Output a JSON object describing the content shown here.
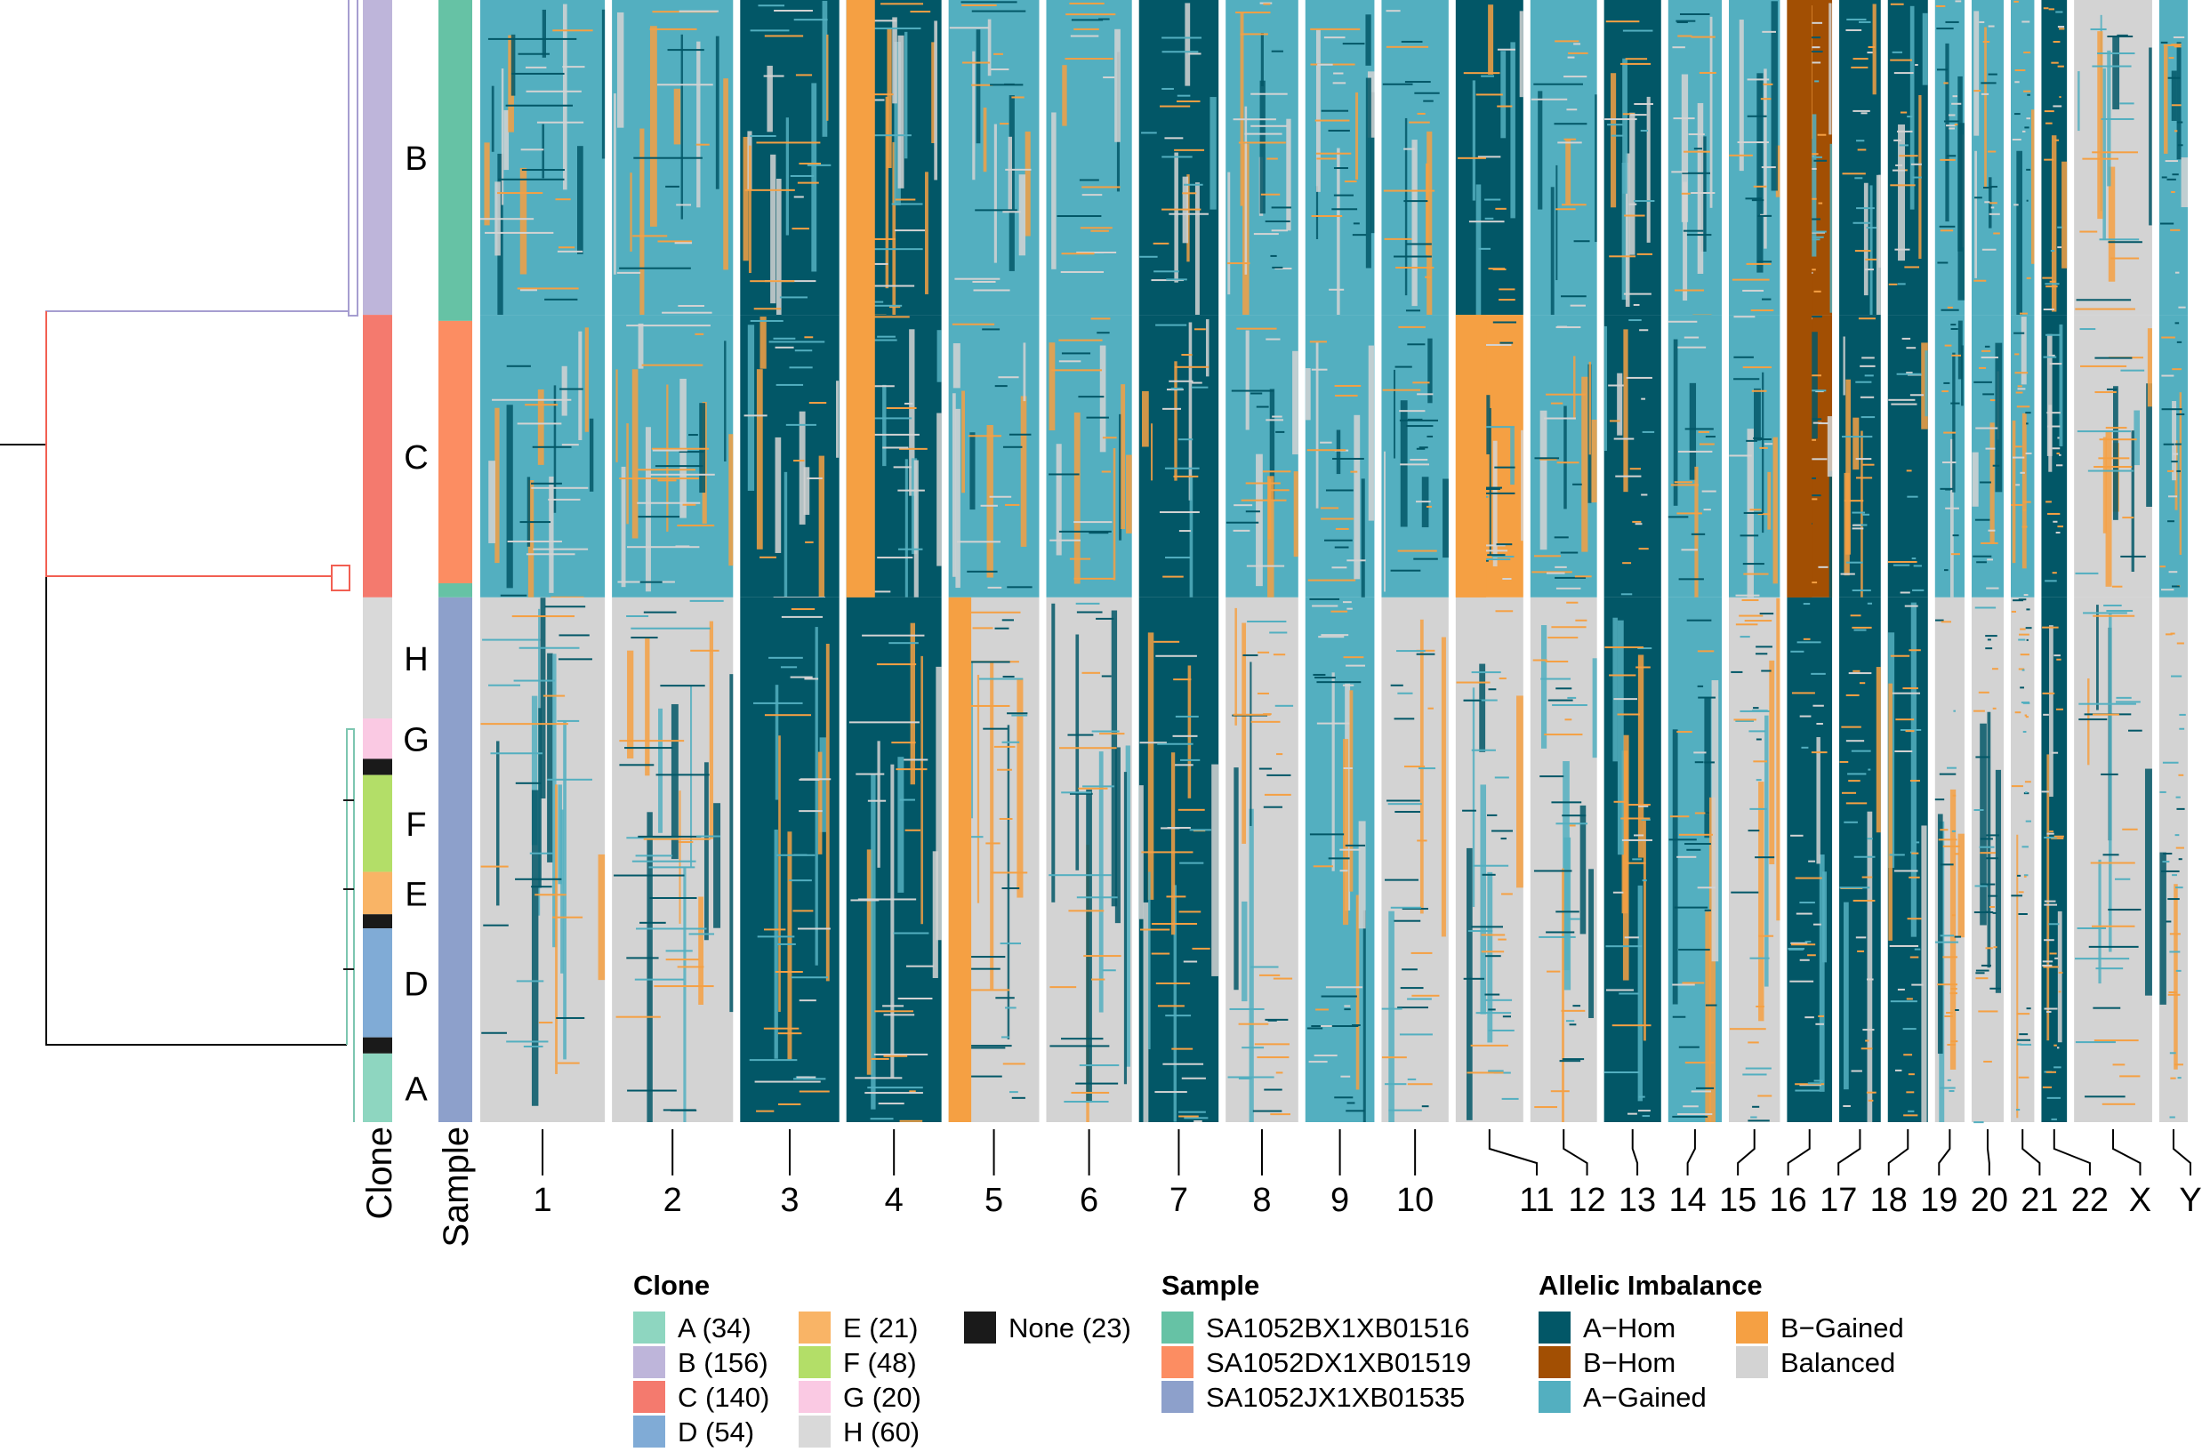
{
  "colors": {
    "A-Hom": "#025767",
    "B-Hom": "#A24F03",
    "A-Gained": "#53AFC0",
    "B-Gained": "#F5A043",
    "Balanced": "#D3D3D3",
    "clone_A": "#8ED6C0",
    "clone_B": "#BEB5DA",
    "clone_C": "#F47A6E",
    "clone_D": "#80ABD6",
    "clone_E": "#F9B466",
    "clone_F": "#B3DE68",
    "clone_G": "#FAC9E3",
    "clone_H": "#D9D9D9",
    "clone_None": "#1A1A1A",
    "sample_1": "#66C2A5",
    "sample_2": "#FC8D62",
    "sample_3": "#8DA0CB",
    "dendro_root": "#000000",
    "dendro_B": "#A69ED0",
    "dendro_C": "#F25F52"
  },
  "chart_data": {
    "type": "heatmap",
    "title": "",
    "column_headers": [
      "Clone",
      "Sample"
    ],
    "clone_row_labels": [
      "B",
      "C",
      "H",
      "G",
      "F",
      "E",
      "D",
      "A"
    ],
    "chromosomes": [
      "1",
      "2",
      "3",
      "4",
      "5",
      "6",
      "7",
      "8",
      "9",
      "10",
      "11",
      "12",
      "13",
      "14",
      "15",
      "16",
      "17",
      "18",
      "19",
      "20",
      "21",
      "22",
      "X",
      "Y"
    ],
    "chromosome_widths": [
      249,
      242,
      198,
      190,
      181,
      171,
      159,
      145,
      138,
      134,
      135,
      133,
      114,
      107,
      102,
      90,
      83,
      80,
      59,
      64,
      47,
      51,
      156,
      57
    ],
    "clone_blocks": [
      {
        "clone": "B",
        "cells": 156
      },
      {
        "clone": "C",
        "cells": 140
      },
      {
        "clone": "H",
        "cells": 60
      },
      {
        "clone": "G",
        "cells": 20
      },
      {
        "clone": "None",
        "cells": 8
      },
      {
        "clone": "F",
        "cells": 48
      },
      {
        "clone": "E",
        "cells": 21
      },
      {
        "clone": "None",
        "cells": 7
      },
      {
        "clone": "D",
        "cells": 54
      },
      {
        "clone": "None",
        "cells": 8
      },
      {
        "clone": "A",
        "cells": 34
      }
    ],
    "sample_blocks": [
      {
        "sample": "SA1052BX1XB01516",
        "cells": 159
      },
      {
        "sample": "SA1052DX1XB01519",
        "cells": 130
      },
      {
        "sample": "SA1052BX1XB01516",
        "cells": 7
      },
      {
        "sample": "SA1052JX1XB01535",
        "cells": 260
      }
    ],
    "state_by_group": {
      "columns": [
        "1",
        "2",
        "3",
        "4",
        "5",
        "6",
        "7",
        "8",
        "9",
        "10",
        "11",
        "12",
        "13",
        "14",
        "15",
        "16",
        "17",
        "18",
        "19",
        "20",
        "21",
        "22",
        "X",
        "Y"
      ],
      "B": [
        "A-Gained",
        "A-Gained",
        "A-Hom",
        "A-Hom",
        "A-Gained",
        "A-Gained",
        "A-Hom",
        "A-Gained",
        "A-Gained",
        "A-Gained",
        "A-Hom",
        "A-Gained",
        "A-Hom",
        "A-Gained",
        "A-Gained",
        "B-Hom",
        "A-Hom",
        "A-Hom",
        "A-Gained",
        "A-Gained",
        "A-Gained",
        "A-Hom",
        "Balanced",
        "A-Gained"
      ],
      "C": [
        "A-Gained",
        "A-Gained",
        "A-Hom",
        "A-Hom",
        "A-Gained",
        "A-Gained",
        "A-Hom",
        "A-Gained",
        "A-Gained",
        "A-Gained",
        "B-Gained",
        "A-Gained",
        "A-Hom",
        "A-Gained",
        "A-Gained",
        "B-Hom",
        "A-Hom",
        "A-Hom",
        "A-Gained",
        "A-Gained",
        "A-Gained",
        "A-Hom",
        "Balanced",
        "A-Gained"
      ],
      "lower": [
        "Balanced",
        "Balanced",
        "A-Hom",
        "A-Hom",
        "Balanced",
        "Balanced",
        "A-Hom",
        "Balanced",
        "A-Gained",
        "Balanced",
        "Balanced",
        "Balanced",
        "A-Hom",
        "A-Gained",
        "Balanced",
        "A-Hom",
        "A-Hom",
        "A-Hom",
        "Balanced",
        "Balanced",
        "Balanced",
        "A-Hom",
        "Balanced",
        "Balanced"
      ]
    }
  },
  "legend": {
    "clone": {
      "title": "Clone",
      "items": [
        {
          "label": "A (34)",
          "color": "#8ED6C0"
        },
        {
          "label": "B (156)",
          "color": "#BEB5DA"
        },
        {
          "label": "C (140)",
          "color": "#F47A6E"
        },
        {
          "label": "D (54)",
          "color": "#80ABD6"
        },
        {
          "label": "E (21)",
          "color": "#F9B466"
        },
        {
          "label": "F (48)",
          "color": "#B3DE68"
        },
        {
          "label": "G (20)",
          "color": "#FAC9E3"
        },
        {
          "label": "H (60)",
          "color": "#D9D9D9"
        },
        {
          "label": "None (23)",
          "color": "#1A1A1A"
        }
      ]
    },
    "sample": {
      "title": "Sample",
      "items": [
        {
          "label": "SA1052BX1XB01516",
          "color": "#66C2A5"
        },
        {
          "label": "SA1052DX1XB01519",
          "color": "#FC8D62"
        },
        {
          "label": "SA1052JX1XB01535",
          "color": "#8DA0CB"
        }
      ]
    },
    "allelic": {
      "title": "Allelic Imbalance",
      "items": [
        {
          "label": "A−Hom",
          "color": "#025767"
        },
        {
          "label": "B−Hom",
          "color": "#A24F03"
        },
        {
          "label": "A−Gained",
          "color": "#53AFC0"
        },
        {
          "label": "B−Gained",
          "color": "#F5A043"
        },
        {
          "label": "Balanced",
          "color": "#D3D3D3"
        }
      ]
    }
  }
}
